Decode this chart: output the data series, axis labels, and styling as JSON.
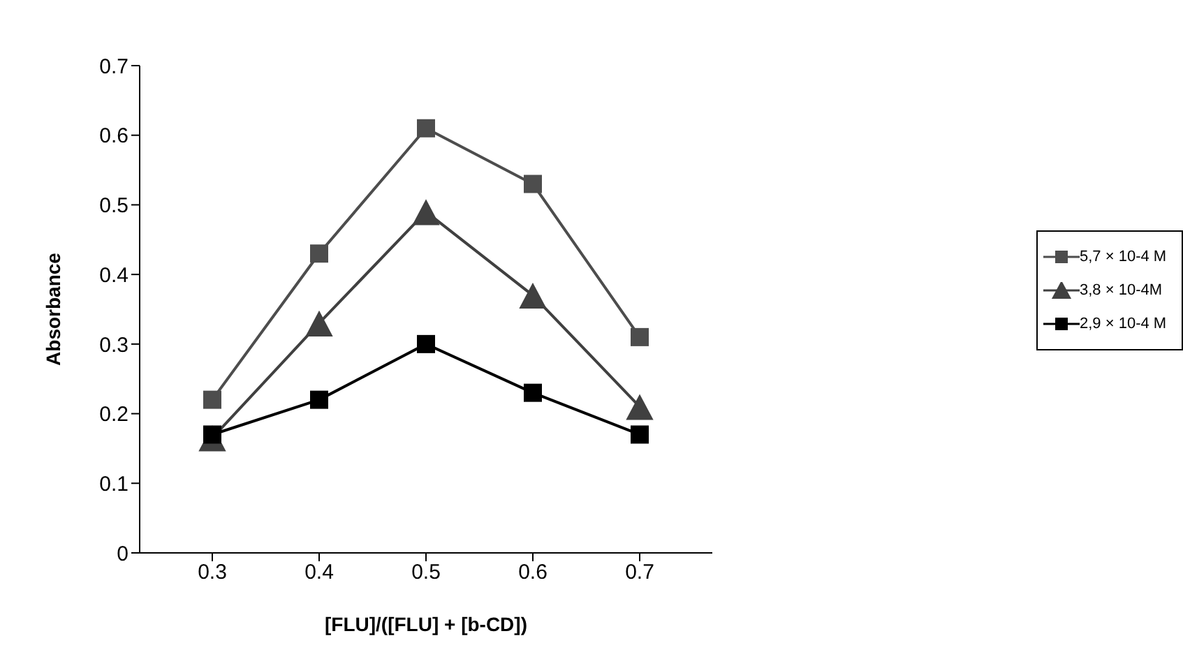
{
  "chart_data": {
    "type": "line",
    "xlabel": "[FLU]/([FLU] + [b-CD])",
    "ylabel": "Absorbance",
    "categories": [
      "0.3",
      "0.4",
      "0.5",
      "0.6",
      "0.7"
    ],
    "series": [
      {
        "name": "5,7 × 10-4 M",
        "color": "#4d4d4d",
        "marker": "square",
        "values": [
          0.22,
          0.43,
          0.61,
          0.53,
          0.31
        ]
      },
      {
        "name": "3,8 × 10-4M",
        "color": "#404040",
        "marker": "triangle",
        "values": [
          0.165,
          0.33,
          0.49,
          0.37,
          0.21
        ]
      },
      {
        "name": "2,9 × 10-4 M",
        "color": "#000000",
        "marker": "square",
        "values": [
          0.17,
          0.22,
          0.3,
          0.23,
          0.17
        ]
      }
    ],
    "ylim": [
      0,
      0.7
    ],
    "yticks": [
      0,
      0.1,
      0.2,
      0.3,
      0.4,
      0.5,
      0.6,
      0.7
    ],
    "grid": false,
    "legend": "right",
    "line_style": "solid"
  }
}
